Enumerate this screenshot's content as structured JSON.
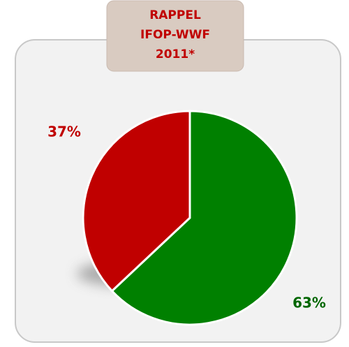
{
  "chart_data": {
    "type": "pie",
    "title": [
      "RAPPEL",
      "IFOP-WWF",
      "2011*"
    ],
    "values": [
      63,
      37
    ],
    "value_labels": [
      "63%",
      "37%"
    ],
    "colors": [
      "#008000",
      "#c00000"
    ]
  }
}
